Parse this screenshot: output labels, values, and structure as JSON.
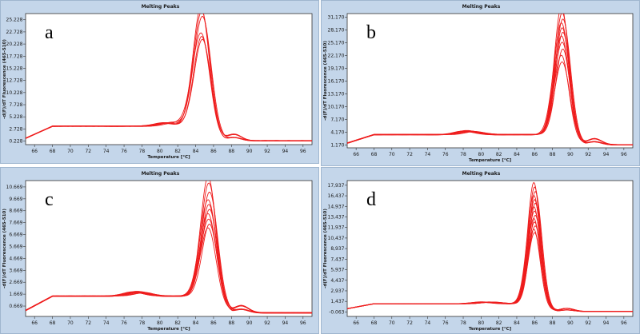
{
  "chart_data": [
    {
      "type": "line",
      "letter": "a",
      "title": "Melting Peaks",
      "xlabel": "Temperature [°C]",
      "ylabel": "-d(F)/dT Fluorescence (465-510)",
      "xlim": [
        65,
        97
      ],
      "ylim": [
        -0.5,
        26.5
      ],
      "xticks": [
        66,
        68,
        70,
        72,
        74,
        76,
        78,
        80,
        82,
        84,
        86,
        88,
        90,
        92,
        94,
        96
      ],
      "yticks": [
        0.228,
        2.728,
        5.228,
        7.728,
        10.228,
        12.728,
        15.228,
        17.728,
        20.228,
        22.728,
        25.228
      ],
      "ytick_labels": [
        "0.228",
        "2.728",
        "5.228",
        "7.728",
        "10.228",
        "12.728",
        "15.228",
        "17.728",
        "20.228",
        "22.728",
        "25.228"
      ],
      "color": "#ee1c1c",
      "curve": {
        "base_start": 0.8,
        "base_mid": 3.3,
        "base_end": 0.3,
        "shoulder_x": 80.5,
        "shoulder_h": 0.6,
        "peak_x": 84.7,
        "peak_w": 0.9
      },
      "series_peaks": [
        25.5,
        24.7,
        23.8,
        20.3,
        19.6,
        19.0
      ]
    },
    {
      "type": "line",
      "letter": "b",
      "title": "Melting Peaks",
      "xlabel": "Temperature [°C]",
      "ylabel": "-d(F)/dT Fluorescence (465-510)",
      "xlim": [
        65,
        97
      ],
      "ylim": [
        0.5,
        32
      ],
      "xticks": [
        66,
        68,
        70,
        72,
        74,
        76,
        78,
        80,
        82,
        84,
        86,
        88,
        90,
        92,
        94,
        96
      ],
      "yticks": [
        1.17,
        4.17,
        7.17,
        10.17,
        13.17,
        16.17,
        19.17,
        22.17,
        25.17,
        28.17,
        31.17
      ],
      "ytick_labels": [
        "1,170",
        "4,170",
        "7,170",
        "10,170",
        "13,170",
        "16,170",
        "19,170",
        "22,170",
        "25,170",
        "28,170",
        "31,170"
      ],
      "color": "#ee1c1c",
      "curve": {
        "base_start": 1.6,
        "base_mid": 3.6,
        "base_end": 1.2,
        "shoulder_x": 78,
        "shoulder_h": 0.7,
        "peak_x": 89.1,
        "peak_w": 0.8
      },
      "series_peaks": [
        31.0,
        29.5,
        28.0,
        27.0,
        26.0,
        25.0,
        24.0,
        22.5,
        21.0,
        19.5,
        18.0
      ]
    },
    {
      "type": "line",
      "letter": "c",
      "title": "Melting Peaks",
      "xlabel": "Temperature [°C]",
      "ylabel": "-d(F)/dT Fluorescence (465-510)",
      "xlim": [
        65,
        97
      ],
      "ylim": [
        -0.2,
        11.2
      ],
      "xticks": [
        66,
        68,
        70,
        72,
        74,
        76,
        78,
        80,
        82,
        84,
        86,
        88,
        90,
        92,
        94,
        96
      ],
      "yticks": [
        0.669,
        1.669,
        2.669,
        3.669,
        4.669,
        5.669,
        6.669,
        7.669,
        8.669,
        9.669,
        10.669
      ],
      "ytick_labels": [
        "0.669",
        "1.669",
        "2.669",
        "3.669",
        "4.669",
        "5.669",
        "6.669",
        "7.669",
        "8.669",
        "9.669",
        "10.669"
      ],
      "color": "#ee1c1c",
      "curve": {
        "base_start": 0.3,
        "base_mid": 1.5,
        "base_end": 0.1,
        "shoulder_x": 77,
        "shoulder_h": 0.3,
        "peak_x": 85.5,
        "peak_w": 0.85
      },
      "series_peaks": [
        10.5,
        10.0,
        9.3,
        8.6,
        8.2,
        7.8,
        7.4,
        7.0,
        6.6,
        6.2
      ]
    },
    {
      "type": "line",
      "letter": "d",
      "title": "Melting Peaks",
      "xlabel": "Temperature [°C]",
      "ylabel": "-d(F)/dT Fluorescence (465-510)",
      "xlim": [
        65,
        97
      ],
      "ylim": [
        -0.7,
        18.6
      ],
      "xticks": [
        66,
        68,
        70,
        72,
        74,
        76,
        78,
        80,
        82,
        84,
        86,
        88,
        90,
        92,
        94,
        96
      ],
      "yticks": [
        -0.063,
        1.437,
        2.937,
        4.437,
        5.937,
        7.437,
        8.937,
        10.437,
        11.937,
        13.437,
        14.937,
        16.437,
        17.937
      ],
      "ytick_labels": [
        "-0.063",
        "1,437",
        "2,937",
        "4,437",
        "5,937",
        "7,437",
        "8,937",
        "10,437",
        "11,937",
        "13,437",
        "14,937",
        "16,437",
        "17,937"
      ],
      "color": "#ee1c1c",
      "curve": {
        "base_start": 0.4,
        "base_mid": 1.1,
        "base_end": 0.0,
        "shoulder_x": 80,
        "shoulder_h": 0.2,
        "peak_x": 86.0,
        "peak_w": 0.7
      },
      "series_peaks": [
        17.6,
        17.0,
        16.4,
        15.8,
        15.2,
        14.7,
        14.2,
        13.6,
        13.0,
        12.5,
        12.0,
        11.5,
        11.0,
        10.5
      ]
    }
  ]
}
